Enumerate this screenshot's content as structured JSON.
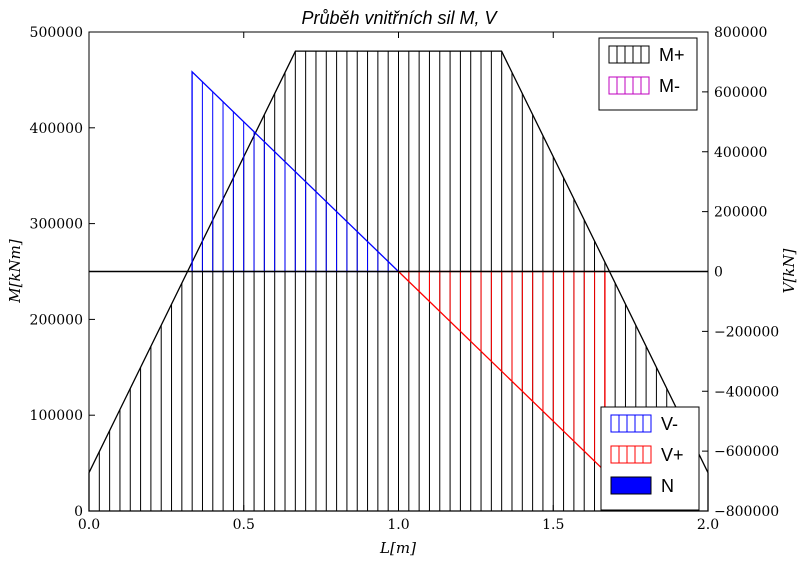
{
  "chart_data": {
    "type": "area",
    "title": "Průběh vnitřních sil M, V",
    "xlabel": "L[m]",
    "ylabel_left": "M[kNm]",
    "ylabel_right": "V[kN]",
    "xlim": [
      0.0,
      2.0
    ],
    "ylim_left": [
      0,
      500000
    ],
    "ylim_right": [
      -800000,
      800000
    ],
    "x_ticks": [
      "0.0",
      "0.5",
      "1.0",
      "1.5",
      "2.0"
    ],
    "y_left_ticks": [
      "0",
      "100000",
      "200000",
      "300000",
      "400000",
      "500000"
    ],
    "y_right_ticks": [
      "−800000",
      "−600000",
      "−400000",
      "−200000",
      "0",
      "200000",
      "400000",
      "600000",
      "800000"
    ],
    "grid": false,
    "series": [
      {
        "name": "M+",
        "axis": "left",
        "color": "#000000",
        "hatch": "vertical",
        "x": [
          0.0,
          0.667,
          1.333,
          2.0
        ],
        "y": [
          40000,
          480000,
          480000,
          40000
        ]
      },
      {
        "name": "M-",
        "axis": "left",
        "color": "#bf00bf",
        "hatch": "vertical",
        "x": [],
        "y": []
      },
      {
        "name": "V-",
        "axis": "right",
        "color": "#0000ff",
        "hatch": "vertical",
        "x": [
          0.333,
          1.0
        ],
        "y": [
          667000,
          0
        ]
      },
      {
        "name": "V+",
        "axis": "right",
        "color": "#ff0000",
        "hatch": "vertical",
        "x": [
          1.0,
          1.667
        ],
        "y": [
          0,
          -667000
        ]
      },
      {
        "name": "N",
        "axis": "left",
        "color": "#0000ff",
        "hatch": "solid",
        "x": [],
        "y": []
      }
    ],
    "zero_line_right": 0,
    "legend_top": {
      "placement": "top-right",
      "entries": [
        "M+",
        "M-"
      ]
    },
    "legend_bottom": {
      "placement": "bottom-right",
      "entries": [
        "V-",
        "V+",
        "N"
      ]
    }
  }
}
